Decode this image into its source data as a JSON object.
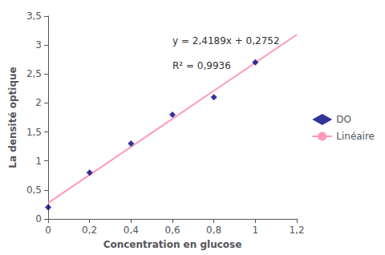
{
  "chart_data": {
    "type": "scatter",
    "xlabel": "Concentration en glucose",
    "ylabel": "La densité optique",
    "annotations": [
      "y = 2,4189x + 0,2752",
      "R² = 0,9936"
    ],
    "series": [
      {
        "name": "DO",
        "type": "scatter",
        "color": "#000080",
        "marker": "diamond",
        "x": [
          0,
          0.2,
          0.4,
          0.6,
          0.8,
          1.0
        ],
        "values": [
          0.2,
          0.8,
          1.3,
          1.8,
          2.1,
          2.7
        ]
      },
      {
        "name": "Linéaire",
        "type": "line",
        "color": "#FF99BB",
        "x": [
          0,
          1.2
        ],
        "values": [
          0.2752,
          3.17788
        ]
      }
    ],
    "xlim": [
      0,
      1.2
    ],
    "ylim": [
      0,
      3.5
    ],
    "xticks": [
      0,
      {
        "value": 0.2,
        "label": "0,2"
      },
      {
        "value": 0.4,
        "label": "0,4"
      },
      {
        "value": 0.6,
        "label": "0,6"
      },
      {
        "value": 0.8,
        "label": "0,8"
      },
      1,
      {
        "value": 1.2,
        "label": "1,2"
      }
    ],
    "yticks": [
      0,
      {
        "value": 0.5,
        "label": "0,5"
      },
      1,
      {
        "value": 1.5,
        "label": "1,5"
      },
      2,
      {
        "value": 2.5,
        "label": "2,5"
      },
      3,
      {
        "value": 3.5,
        "label": "3,5"
      }
    ],
    "legend": "right",
    "grid": false
  }
}
